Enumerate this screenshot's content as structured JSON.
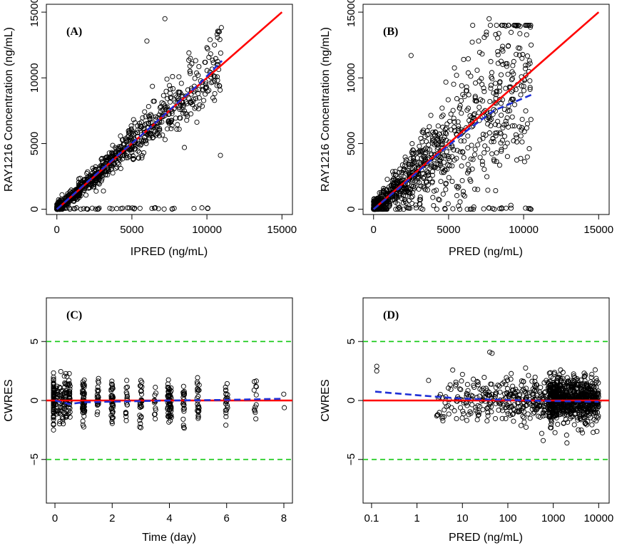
{
  "colors": {
    "points": "#000000",
    "identity_line": "#ff0000",
    "loess_line": "#1f2fd6",
    "bound_line": "#22cc22"
  },
  "chart_data": [
    {
      "id": "A",
      "type": "scatter",
      "panel_label": "(A)",
      "xlabel": "IPRED (ng/mL)",
      "ylabel": "RAY1216 Concentration (ng/mL)",
      "xlim": [
        -700,
        15700
      ],
      "ylim": [
        -400,
        15600
      ],
      "xticks": [
        0,
        5000,
        10000,
        15000
      ],
      "xtick_labels": [
        "0",
        "5000",
        "10000",
        "15000"
      ],
      "yticks": [
        0,
        5000,
        10000,
        15000
      ],
      "ytick_labels": [
        "0",
        "5000",
        "10000",
        "15000"
      ],
      "identity_line": [
        [
          0,
          0
        ],
        [
          15000,
          15000
        ]
      ],
      "loess_line": [
        [
          0,
          0
        ],
        [
          2000,
          2050
        ],
        [
          4000,
          4050
        ],
        [
          6000,
          6000
        ],
        [
          8000,
          8050
        ],
        [
          9500,
          9550
        ],
        [
          11000,
          11300
        ]
      ],
      "scatter": {
        "n": 950,
        "x_max": 11000,
        "x_skew": 1.9,
        "relative_sd": 0.13,
        "abs_sd": 200,
        "seed": 7
      },
      "annotated_points": [
        [
          7200,
          14500
        ],
        [
          6000,
          12800
        ],
        [
          8800,
          11900
        ],
        [
          10000,
          12300
        ],
        [
          10500,
          12500
        ],
        [
          8500,
          4700
        ],
        [
          10900,
          4100
        ]
      ]
    },
    {
      "id": "B",
      "type": "scatter",
      "panel_label": "(B)",
      "xlabel": "PRED (ng/mL)",
      "ylabel": "RAY1216 Concentration (ng/mL)",
      "xlim": [
        -700,
        15700
      ],
      "ylim": [
        -400,
        15600
      ],
      "xticks": [
        0,
        5000,
        10000,
        15000
      ],
      "xtick_labels": [
        "0",
        "5000",
        "10000",
        "15000"
      ],
      "yticks": [
        0,
        5000,
        10000,
        15000
      ],
      "ytick_labels": [
        "0",
        "5000",
        "10000",
        "15000"
      ],
      "identity_line": [
        [
          0,
          0
        ],
        [
          15000,
          15000
        ]
      ],
      "loess_line": [
        [
          0,
          0
        ],
        [
          2000,
          1900
        ],
        [
          4000,
          3900
        ],
        [
          6000,
          5800
        ],
        [
          8000,
          7500
        ],
        [
          10500,
          8700
        ]
      ],
      "scatter": {
        "n": 1000,
        "x_max": 10500,
        "x_skew": 1.7,
        "relative_sd": 0.42,
        "abs_sd": 350,
        "seed": 11
      },
      "annotated_points": [
        [
          7700,
          14500
        ],
        [
          7000,
          12800
        ],
        [
          8600,
          12400
        ],
        [
          10500,
          12500
        ],
        [
          2500,
          11700
        ],
        [
          6000,
          11400
        ]
      ]
    },
    {
      "id": "C",
      "type": "scatter",
      "panel_label": "(C)",
      "xlabel": "Time (day)",
      "ylabel": "CWRES",
      "xlim": [
        -0.3,
        8.3
      ],
      "ylim": [
        -8.7,
        8.7
      ],
      "xticks": [
        0,
        2,
        4,
        6,
        8
      ],
      "xtick_labels": [
        "0",
        "2",
        "4",
        "6",
        "8"
      ],
      "yticks": [
        -5,
        0,
        5
      ],
      "ytick_labels": [
        "−5",
        "0",
        "5"
      ],
      "zero_line": 0,
      "bound_lines": [
        -5,
        5
      ],
      "loess_line": [
        [
          0,
          0
        ],
        [
          0.5,
          -0.3
        ],
        [
          1,
          -0.15
        ],
        [
          2,
          -0.1
        ],
        [
          4,
          0
        ],
        [
          6,
          0.05
        ],
        [
          8,
          0.15
        ]
      ],
      "time_groups": [
        {
          "t": 0,
          "spread": 0.45,
          "n": 160
        },
        {
          "t": 0.5,
          "spread": 0.03,
          "n": 30
        },
        {
          "t": 1,
          "spread": 0.04,
          "n": 55
        },
        {
          "t": 1.5,
          "spread": 0.03,
          "n": 25
        },
        {
          "t": 2,
          "spread": 0.04,
          "n": 40
        },
        {
          "t": 2.5,
          "spread": 0.03,
          "n": 18
        },
        {
          "t": 3,
          "spread": 0.04,
          "n": 28
        },
        {
          "t": 3.5,
          "spread": 0.03,
          "n": 12
        },
        {
          "t": 4,
          "spread": 0.07,
          "n": 60
        },
        {
          "t": 4.5,
          "spread": 0.03,
          "n": 22
        },
        {
          "t": 5,
          "spread": 0.04,
          "n": 25
        },
        {
          "t": 6,
          "spread": 0.04,
          "n": 22
        },
        {
          "t": 7,
          "spread": 0.04,
          "n": 12
        },
        {
          "t": 8,
          "spread": 0.02,
          "n": 2
        }
      ],
      "seed": 19
    },
    {
      "id": "D",
      "type": "scatter",
      "panel_label": "(D)",
      "xlabel": "PRED (ng/mL)",
      "ylabel": "CWRES",
      "xscale": "log",
      "xlim": [
        0.065,
        17000
      ],
      "ylim": [
        -8.7,
        8.7
      ],
      "xticks": [
        0.1,
        1,
        10,
        100,
        1000,
        10000
      ],
      "xtick_labels": [
        "0.1",
        "1",
        "10",
        "100",
        "1000",
        "10000"
      ],
      "yticks": [
        -5,
        0,
        5
      ],
      "ytick_labels": [
        "−5",
        "0",
        "5"
      ],
      "zero_line": 0,
      "bound_lines": [
        -5,
        5
      ],
      "loess_line": [
        [
          0.12,
          0.75
        ],
        [
          1,
          0.45
        ],
        [
          10,
          0.15
        ],
        [
          100,
          0.05
        ],
        [
          1000,
          -0.05
        ],
        [
          10000,
          -0.1
        ]
      ],
      "scatter": {
        "n_sparse": 380,
        "n_dense": 700,
        "seed": 23
      },
      "annotated_points": [
        [
          0.13,
          2.5
        ],
        [
          0.13,
          2.9
        ],
        [
          1.8,
          1.7
        ],
        [
          40,
          4.1
        ],
        [
          45,
          4.0
        ],
        [
          600,
          -3.4
        ],
        [
          2000,
          -3.6
        ]
      ]
    }
  ]
}
